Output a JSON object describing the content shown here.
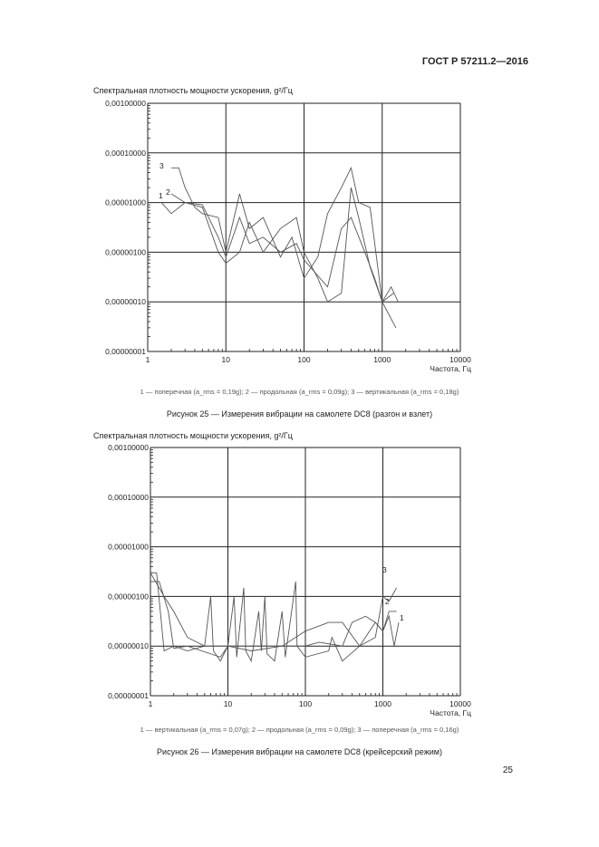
{
  "header": {
    "standard": "ГОСТ Р 57211.2—2016"
  },
  "page_number": "25",
  "chart_data": [
    {
      "type": "line",
      "title": "Спектральная плотность мощности ускорения, g²/Гц",
      "xlabel": "Частота, Гц",
      "ylabel": "Спектральная плотность мощности ускорения, g²/Гц",
      "xscale": "log",
      "yscale": "log",
      "xlim": [
        1,
        10000
      ],
      "ylim": [
        1e-08,
        0.001
      ],
      "xticks": [
        "1",
        "10",
        "100",
        "1000",
        "10000"
      ],
      "yticks": [
        "0,00000001",
        "0,00000010",
        "0,00000100",
        "0,00001000",
        "0,00010000",
        "0,00100000"
      ],
      "grid": true,
      "legend_text": "1 — поперечная (a_rms = 0,19g); 2 — продольная (a_rms = 0,09g); 3 — вертикальная (a_rms = 0,18g)",
      "caption": "Рисунок 25 — Измерения вибрации на самолете DC8 (разгон и взлет)",
      "series": [
        {
          "name": "1",
          "x": [
            1.5,
            2,
            3,
            5,
            8,
            10,
            15,
            20,
            30,
            50,
            80,
            100,
            150,
            200,
            300,
            400,
            500,
            700,
            1000,
            1300,
            1600
          ],
          "y": [
            1e-05,
            6e-06,
            1e-05,
            8e-06,
            1e-06,
            6e-07,
            1e-06,
            4e-06,
            1e-06,
            3e-06,
            5e-06,
            1e-06,
            3e-07,
            1e-07,
            1.5e-07,
            2e-05,
            5e-06,
            5e-07,
            1e-07,
            2e-07,
            1e-07
          ]
        },
        {
          "name": "2",
          "x": [
            2,
            3,
            5,
            8,
            10,
            15,
            20,
            30,
            50,
            80,
            100,
            200,
            300,
            400,
            600,
            800,
            1000,
            1400
          ],
          "y": [
            1.5e-05,
            1e-05,
            9e-06,
            2e-06,
            8e-07,
            5e-06,
            1.5e-06,
            2e-06,
            1e-06,
            1.5e-06,
            7e-07,
            2e-07,
            3e-06,
            5e-06,
            1e-06,
            3e-07,
            1e-07,
            1.5e-07
          ]
        },
        {
          "name": "3",
          "x": [
            2,
            2.5,
            3,
            4,
            5,
            8,
            10,
            15,
            20,
            30,
            50,
            70,
            100,
            150,
            200,
            300,
            400,
            500,
            700,
            1000,
            1500
          ],
          "y": [
            5e-05,
            5e-05,
            2e-05,
            8e-06,
            6e-06,
            5e-06,
            1e-06,
            1.5e-05,
            3e-06,
            5e-06,
            8e-07,
            2e-06,
            3e-07,
            8e-07,
            6e-06,
            2e-05,
            5e-05,
            1e-05,
            8e-06,
            1e-07,
            3e-08
          ]
        }
      ]
    },
    {
      "type": "line",
      "title": "Спектральная плотность мощности ускорения, g²/Гц",
      "xlabel": "Частота, Гц",
      "ylabel": "Спектральная плотность мощности ускорения, g²/Гц",
      "xscale": "log",
      "yscale": "log",
      "xlim": [
        1,
        10000
      ],
      "ylim": [
        1e-08,
        0.001
      ],
      "xticks": [
        "1",
        "10",
        "100",
        "1000",
        "10000"
      ],
      "yticks": [
        "0,00000001",
        "0,00000010",
        "0,00000100",
        "0,00001000",
        "0,00010000",
        "0,00100000"
      ],
      "grid": true,
      "legend_text": "1 — вертикальная (a_rms = 0,07g); 2 — продольная (a_rms = 0,09g); 3 — поперечная (a_rms = 0,16g)",
      "caption": "Рисунок 26 — Измерения вибрации на самолете DC8 (крейсерский режим)",
      "series": [
        {
          "name": "1",
          "x": [
            1,
            1.2,
            1.5,
            2,
            3,
            5,
            6,
            6.5,
            8,
            10,
            12,
            13,
            16,
            17,
            20,
            25,
            27,
            30,
            32,
            40,
            50,
            55,
            75,
            78,
            100,
            200,
            220,
            300,
            500,
            800,
            1000,
            1200,
            1400,
            1600
          ],
          "y": [
            3e-06,
            3e-06,
            8e-08,
            1e-07,
            8e-08,
            1e-07,
            1e-06,
            8e-08,
            5e-08,
            1e-07,
            1e-06,
            6e-08,
            1.5e-06,
            8e-08,
            5e-08,
            5e-07,
            8e-08,
            1e-06,
            7e-08,
            5e-08,
            5e-07,
            6e-08,
            2e-06,
            1e-07,
            6e-08,
            8e-08,
            1.5e-07,
            5e-08,
            1e-07,
            3e-07,
            2e-07,
            4e-07,
            1e-07,
            3e-07
          ]
        },
        {
          "name": "2",
          "x": [
            1,
            1.3,
            1.7,
            2,
            3,
            8,
            10,
            20,
            50,
            100,
            150,
            300,
            400,
            600,
            800,
            1000,
            1200,
            1500
          ],
          "y": [
            2e-06,
            2e-06,
            5e-07,
            9e-08,
            1e-07,
            6e-08,
            1e-07,
            8e-08,
            1e-07,
            1e-07,
            1.2e-07,
            1e-07,
            3e-07,
            4e-07,
            3e-07,
            2e-07,
            5e-07,
            5e-07
          ]
        },
        {
          "name": "3",
          "x": [
            1,
            1.5,
            2,
            3,
            5,
            10,
            50,
            100,
            200,
            300,
            500,
            800,
            1000,
            1200,
            1500
          ],
          "y": [
            3e-06,
            1e-06,
            5e-07,
            1.5e-07,
            1e-07,
            1e-07,
            1e-07,
            2e-07,
            3e-07,
            3e-07,
            1e-07,
            1.5e-07,
            1e-06,
            8e-07,
            1.5e-06
          ]
        }
      ]
    }
  ],
  "figures": [
    {
      "title": "Спектральная плотность мощности ускорения, g²/Гц",
      "legend": "1 — поперечная (a",
      "caption": "Рисунок 25 — Измерения вибрации на самолете DC8 (разгон и взлет)"
    },
    {
      "title": "Спектральная плотность мощности ускорения, g²/Гц",
      "caption": "Рисунок 26 — Измерения вибрации на самолете DC8 (крейсерский режим)"
    }
  ],
  "colors": {
    "series": "#555555",
    "grid": "#222222"
  }
}
